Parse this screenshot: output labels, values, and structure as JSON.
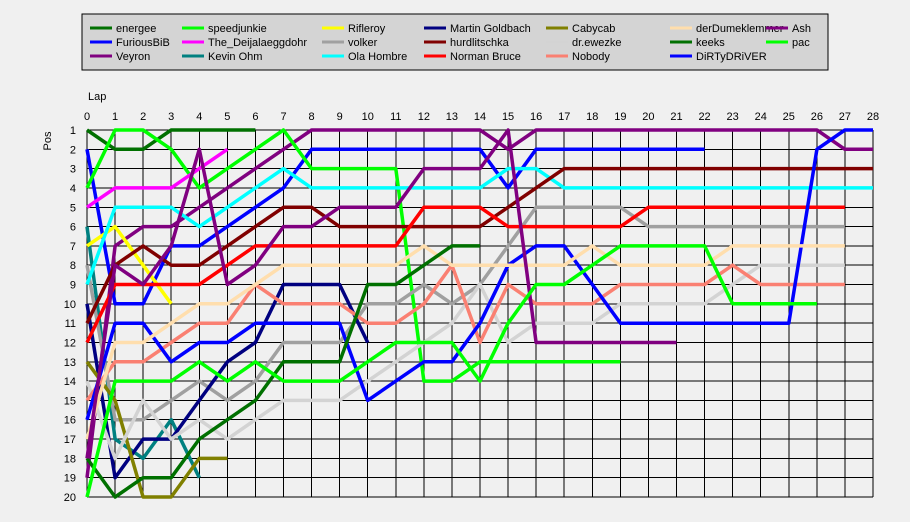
{
  "chart_data": {
    "type": "line",
    "xlabel": "Lap",
    "ylabel": "Pos",
    "xlim": [
      0,
      28
    ],
    "ylim": [
      1,
      20
    ],
    "y_inverted": true,
    "grid": true,
    "legend_position": "top",
    "x_ticks": [
      "0",
      "1",
      "2",
      "3",
      "4",
      "5",
      "6",
      "7",
      "8",
      "9",
      "10",
      "11",
      "12",
      "13",
      "14",
      "15",
      "16",
      "17",
      "18",
      "19",
      "20",
      "21",
      "22",
      "23",
      "24",
      "25",
      "26",
      "27",
      "28"
    ],
    "y_ticks": [
      "1",
      "2",
      "3",
      "4",
      "5",
      "6",
      "7",
      "8",
      "9",
      "10",
      "11",
      "12",
      "13",
      "14",
      "15",
      "16",
      "17",
      "18",
      "19",
      "20"
    ],
    "series": [
      {
        "name": "energee",
        "color": "#007000",
        "x": [
          0,
          1,
          2,
          3,
          4,
          5,
          6
        ],
        "y": [
          1,
          2,
          2,
          1,
          1,
          1,
          1
        ]
      },
      {
        "name": "FuriousBiB",
        "color": "#0000ff",
        "x": [
          0,
          1,
          2,
          3,
          4,
          5,
          6,
          7,
          8,
          9,
          10,
          11,
          12,
          13,
          14,
          15,
          16,
          17,
          18,
          19,
          20,
          21,
          22
        ],
        "y": [
          2,
          10,
          10,
          7,
          7,
          6,
          5,
          4,
          2,
          2,
          2,
          2,
          2,
          2,
          2,
          4,
          2,
          2,
          2,
          2,
          2,
          2,
          2
        ]
      },
      {
        "name": "Veyron",
        "color": "#800080",
        "x": [
          0,
          1,
          2,
          3,
          4,
          5,
          6,
          7,
          8,
          9,
          10,
          11,
          12,
          13,
          14,
          15,
          16,
          17,
          18,
          19,
          20,
          21,
          22,
          23,
          24,
          25,
          26,
          27,
          28
        ],
        "y": [
          19,
          7,
          6,
          6,
          5,
          4,
          3,
          2,
          1,
          1,
          1,
          1,
          1,
          1,
          1,
          2,
          1,
          1,
          1,
          1,
          1,
          1,
          1,
          1,
          1,
          1,
          1,
          2,
          2
        ]
      },
      {
        "name": "speedjunkie",
        "color": "#00ff00",
        "x": [
          0,
          1,
          2,
          3,
          4,
          5,
          6,
          7,
          8,
          9,
          10,
          11,
          12,
          13,
          14,
          15,
          16,
          17,
          18,
          19
        ],
        "y": [
          4,
          1,
          1,
          2,
          4,
          3,
          2,
          1,
          3,
          3,
          3,
          3,
          14,
          14,
          13,
          13,
          13,
          13,
          13,
          13
        ]
      },
      {
        "name": "The_Deijalaeggdohr",
        "color": "#ff00ff",
        "x": [
          0,
          1,
          2,
          3,
          4,
          5
        ],
        "y": [
          5,
          4,
          4,
          4,
          3,
          2
        ]
      },
      {
        "name": "Kevin Ohm",
        "color": "#008080",
        "x": [
          0,
          1,
          2,
          3,
          4
        ],
        "y": [
          6,
          17,
          18,
          16,
          19
        ]
      },
      {
        "name": "Rifleroy",
        "color": "#ffff00",
        "x": [
          0,
          1,
          2,
          3
        ],
        "y": [
          7,
          6,
          8,
          10
        ]
      },
      {
        "name": "volker",
        "color": "#a0a0a0",
        "x": [
          0,
          1,
          2,
          3,
          4,
          5,
          6,
          7,
          8,
          9,
          10,
          11,
          12,
          13,
          14,
          15,
          16,
          17,
          18,
          19,
          20,
          21,
          22,
          23,
          24,
          25,
          26,
          27
        ],
        "y": [
          8,
          16,
          16,
          15,
          14,
          15,
          14,
          12,
          12,
          12,
          10,
          10,
          9,
          10,
          9,
          7,
          5,
          5,
          5,
          5,
          6,
          6,
          6,
          6,
          6,
          6,
          6,
          6
        ]
      },
      {
        "name": "volker",
        "color": "#a0a0a0",
        "x": [
          0
        ],
        "y": [
          8
        ]
      },
      {
        "name": "Ola Hombre",
        "color": "#00ffff",
        "x": [
          0,
          1,
          2,
          3,
          4,
          5,
          6,
          7,
          8,
          9,
          10,
          11,
          12,
          13,
          14,
          15,
          16,
          17,
          18,
          19,
          20,
          21,
          22,
          23,
          24,
          25,
          26,
          27,
          28
        ],
        "y": [
          9,
          5,
          5,
          5,
          6,
          5,
          4,
          3,
          4,
          4,
          4,
          4,
          4,
          4,
          4,
          3,
          3,
          4,
          4,
          4,
          4,
          4,
          4,
          4,
          4,
          4,
          4,
          4,
          4
        ]
      },
      {
        "name": "Martin Goldbach",
        "color": "#000080",
        "x": [
          0,
          1,
          2,
          3,
          4,
          5,
          6,
          7,
          8,
          9,
          10
        ],
        "y": [
          10,
          19,
          17,
          17,
          15,
          13,
          12,
          9,
          9,
          9,
          12
        ]
      },
      {
        "name": "hurdlitschka",
        "color": "#800000",
        "x": [
          0,
          1,
          2,
          3,
          4,
          5,
          6,
          7,
          8,
          9,
          10,
          11,
          12,
          13,
          14,
          15,
          16,
          17,
          18,
          19,
          20,
          21,
          22,
          23,
          24,
          25,
          26,
          27,
          28
        ],
        "y": [
          11,
          8,
          7,
          8,
          8,
          7,
          6,
          5,
          5,
          6,
          6,
          6,
          6,
          6,
          6,
          5,
          4,
          3,
          3,
          3,
          3,
          3,
          3,
          3,
          3,
          3,
          3,
          3,
          3
        ]
      },
      {
        "name": "Norman Bruce",
        "color": "#ff0000",
        "x": [
          0,
          1,
          2,
          3,
          4,
          5,
          6,
          7,
          8,
          9,
          10,
          11,
          12,
          13,
          14,
          15,
          16,
          17,
          18,
          19,
          20,
          21,
          22,
          23,
          24,
          25,
          26,
          27
        ],
        "y": [
          12,
          9,
          9,
          9,
          9,
          8,
          7,
          7,
          7,
          7,
          7,
          7,
          5,
          5,
          5,
          6,
          6,
          6,
          6,
          6,
          5,
          5,
          5,
          5,
          5,
          5,
          5,
          5
        ]
      },
      {
        "name": "Cabycab",
        "color": "#808000",
        "x": [
          0,
          1,
          2,
          3,
          4,
          5
        ],
        "y": [
          13,
          15,
          20,
          20,
          18,
          18
        ]
      },
      {
        "name": "dr.ewezke",
        "color": "#d3d3d3",
        "x": [
          0,
          1,
          2,
          3,
          4,
          5,
          6,
          7,
          8,
          9,
          10,
          11,
          12,
          13,
          14,
          15,
          16,
          17,
          18,
          19,
          20,
          21,
          22,
          23,
          24,
          25,
          26,
          27
        ],
        "y": [
          14,
          18,
          15,
          17,
          16,
          17,
          16,
          15,
          15,
          15,
          14,
          13,
          12,
          11,
          9,
          12,
          11,
          11,
          11,
          10,
          10,
          10,
          10,
          9,
          8,
          8,
          8,
          8
        ]
      },
      {
        "name": "Nobody",
        "color": "#fa8072",
        "x": [
          0,
          1,
          2,
          3,
          4,
          5,
          6,
          7,
          8,
          9,
          10,
          11,
          12,
          13,
          14,
          15,
          16,
          17,
          18,
          19,
          20,
          21,
          22,
          23,
          24,
          25,
          26,
          27
        ],
        "y": [
          15,
          13,
          13,
          12,
          11,
          11,
          9,
          10,
          10,
          10,
          11,
          11,
          10,
          8,
          12,
          9,
          10,
          10,
          10,
          9,
          9,
          9,
          9,
          8,
          9,
          9,
          9,
          9
        ]
      },
      {
        "name": "DiRTyDRiVER",
        "color": "#0000ff",
        "x": [
          0,
          1,
          2,
          3,
          4,
          5,
          6,
          7,
          8,
          9,
          10,
          11,
          12,
          13,
          14,
          15,
          16,
          17,
          18,
          19,
          20,
          21,
          22,
          23,
          24,
          25,
          26,
          27,
          28
        ],
        "y": [
          16,
          11,
          11,
          13,
          12,
          12,
          11,
          11,
          11,
          11,
          15,
          14,
          13,
          13,
          11,
          8,
          7,
          7,
          9,
          11,
          11,
          11,
          11,
          11,
          11,
          11,
          2,
          1,
          1
        ]
      },
      {
        "name": "derDumeklemmer",
        "color": "#ffdead",
        "x": [
          0,
          1,
          2,
          3,
          4,
          5,
          6,
          7,
          8,
          9,
          10,
          11,
          12,
          13,
          14,
          15,
          16,
          17,
          18,
          19,
          20,
          21,
          22,
          23,
          24,
          25,
          26,
          27
        ],
        "y": [
          17,
          12,
          12,
          11,
          10,
          10,
          9,
          8,
          8,
          8,
          8,
          8,
          7,
          8,
          8,
          8,
          8,
          8,
          7,
          8,
          8,
          8,
          8,
          7,
          7,
          7,
          7,
          7
        ]
      },
      {
        "name": "keeks",
        "color": "#007000",
        "x": [
          0,
          1,
          2,
          3,
          4,
          5,
          6,
          7,
          8,
          9,
          10,
          11,
          12,
          13,
          14
        ],
        "y": [
          18,
          20,
          19,
          19,
          17,
          16,
          15,
          13,
          13,
          13,
          9,
          9,
          8,
          7,
          7
        ]
      },
      {
        "name": "Ash",
        "color": "#800080",
        "x": [
          0,
          1,
          2,
          3,
          4,
          5,
          6,
          7,
          8,
          9,
          10,
          11,
          12,
          13,
          14,
          15,
          16,
          17,
          18,
          19,
          20,
          21
        ],
        "y": [
          18,
          8,
          9,
          7,
          2,
          9,
          8,
          6,
          6,
          5,
          5,
          5,
          3,
          3,
          3,
          1,
          12,
          12,
          12,
          12,
          12,
          12
        ]
      },
      {
        "name": "pac",
        "color": "#00ff00",
        "x": [
          0,
          1,
          2,
          3,
          4,
          5,
          6,
          7,
          8,
          9,
          10,
          11,
          12,
          13,
          14,
          15,
          16,
          17,
          18,
          19,
          20,
          21,
          22,
          23,
          24,
          25,
          26
        ],
        "y": [
          20,
          14,
          14,
          14,
          13,
          14,
          13,
          14,
          14,
          14,
          13,
          12,
          12,
          12,
          14,
          11,
          9,
          9,
          8,
          7,
          7,
          7,
          7,
          10,
          10,
          10,
          10
        ]
      }
    ]
  },
  "legend": [
    {
      "name": "energee",
      "color": "#007000"
    },
    {
      "name": "FuriousBiB",
      "color": "#0000ff"
    },
    {
      "name": "Veyron",
      "color": "#800080"
    },
    {
      "name": "speedjunkie",
      "color": "#00ff00"
    },
    {
      "name": "The_Deijalaeggdohr",
      "color": "#ff00ff"
    },
    {
      "name": "Kevin Ohm",
      "color": "#008080"
    },
    {
      "name": "Rifleroy",
      "color": "#ffff00"
    },
    {
      "name": "volker",
      "color": "#a0a0a0"
    },
    {
      "name": "Ola Hombre",
      "color": "#00ffff"
    },
    {
      "name": "Martin Goldbach",
      "color": "#000080"
    },
    {
      "name": "hurdlitschka",
      "color": "#800000"
    },
    {
      "name": "Norman Bruce",
      "color": "#ff0000"
    },
    {
      "name": "Cabycab",
      "color": "#808000"
    },
    {
      "name": "dr.ewezke",
      "color": "#d3d3d3"
    },
    {
      "name": "Nobody",
      "color": "#fa8072"
    },
    {
      "name": "derDumeklemmer",
      "color": "#ffdead"
    },
    {
      "name": "keeks",
      "color": "#007000"
    },
    {
      "name": "DiRTyDRiVER",
      "color": "#0000ff"
    },
    {
      "name": "Ash",
      "color": "#800080"
    },
    {
      "name": "pac",
      "color": "#00ff00"
    }
  ]
}
